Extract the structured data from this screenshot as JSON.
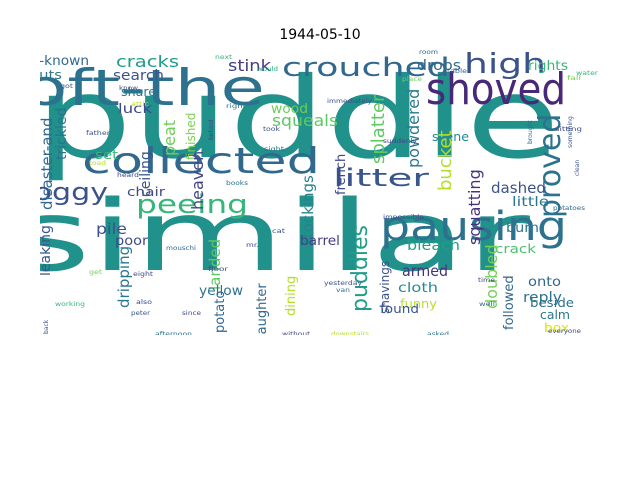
{
  "title": "1944-05-10",
  "words": [
    {
      "text": "puddle",
      "color": "#21918c"
    },
    {
      "text": "similar",
      "color": "#21918c"
    },
    {
      "text": "loft-the",
      "color": "#2c728e"
    },
    {
      "text": "shoved",
      "color": "#482878"
    },
    {
      "text": "collected",
      "color": "#31688e"
    },
    {
      "text": "pausing",
      "color": "#2c728e"
    },
    {
      "text": "crouched",
      "color": "#31688e"
    },
    {
      "text": "high",
      "color": "#3b528b"
    },
    {
      "text": "proved",
      "color": "#2c728e"
    },
    {
      "text": "litter",
      "color": "#39568c"
    },
    {
      "text": "soggy",
      "color": "#3b528b"
    },
    {
      "text": "peeing",
      "color": "#35b779"
    },
    {
      "text": "puddles",
      "color": "#1f9e89"
    },
    {
      "text": "cracks",
      "color": "#1f9e89"
    },
    {
      "text": "stink",
      "color": "#433e85"
    },
    {
      "text": "drops",
      "color": "#31688e"
    },
    {
      "text": "rights",
      "color": "#35b779"
    },
    {
      "text": "well-known",
      "color": "#31688e"
    },
    {
      "text": "shouts",
      "color": "#2a788e"
    },
    {
      "text": "search",
      "color": "#3b528b"
    },
    {
      "text": "share",
      "color": "#2a788e"
    },
    {
      "text": "luck",
      "color": "#3e4989"
    },
    {
      "text": "wood",
      "color": "#6ece58"
    },
    {
      "text": "squeals",
      "color": "#5ec962"
    },
    {
      "text": "peat",
      "color": "#6ece58"
    },
    {
      "text": "finished",
      "color": "#7ad151"
    },
    {
      "text": "heaven",
      "color": "#414487"
    },
    {
      "text": "stockings",
      "color": "#26828e"
    },
    {
      "text": "french",
      "color": "#3e4989"
    },
    {
      "text": "splatter",
      "color": "#5ec962"
    },
    {
      "text": "powdered",
      "color": "#2a788e"
    },
    {
      "text": "scene",
      "color": "#228c8d"
    },
    {
      "text": "bucket",
      "color": "#b5de2b"
    },
    {
      "text": "squatting",
      "color": "#46337e"
    },
    {
      "text": "dashed",
      "color": "#3b528b"
    },
    {
      "text": "little",
      "color": "#2a788e"
    },
    {
      "text": "burn",
      "color": "#2a788e"
    },
    {
      "text": "bleach",
      "color": "#1fa188"
    },
    {
      "text": "crack",
      "color": "#4ac16d"
    },
    {
      "text": "armed",
      "color": "#46337e"
    },
    {
      "text": "cloth",
      "color": "#228c8d"
    },
    {
      "text": "funny",
      "color": "#bddf26"
    },
    {
      "text": "doubled",
      "color": "#73d056"
    },
    {
      "text": "onto",
      "color": "#31688e"
    },
    {
      "text": "reply",
      "color": "#2c728e"
    },
    {
      "text": "calm",
      "color": "#2a788e"
    },
    {
      "text": "box",
      "color": "#d8e219"
    },
    {
      "text": "beside",
      "color": "#2c728e"
    },
    {
      "text": "followed",
      "color": "#31688e"
    },
    {
      "text": "found",
      "color": "#39568c"
    },
    {
      "text": "shavings",
      "color": "#3b528b"
    },
    {
      "text": "barrel",
      "color": "#433e85"
    },
    {
      "text": "dining",
      "color": "#b5de2b"
    },
    {
      "text": "laughter",
      "color": "#31688e"
    },
    {
      "text": "landed",
      "color": "#5ec962"
    },
    {
      "text": "yellow",
      "color": "#2c728e"
    },
    {
      "text": "potato",
      "color": "#31688e"
    },
    {
      "text": "chair",
      "color": "#3e4989"
    },
    {
      "text": "pile",
      "color": "#3b528b"
    },
    {
      "text": "poor",
      "color": "#3e4989"
    },
    {
      "text": "dripping",
      "color": "#2a788e"
    },
    {
      "text": "ceiling",
      "color": "#3b528b"
    },
    {
      "text": "set",
      "color": "#35b779"
    },
    {
      "text": "trickled",
      "color": "#2c728e"
    },
    {
      "text": "leaking",
      "color": "#39568c"
    },
    {
      "text": "disaster-and",
      "color": "#31688e"
    },
    {
      "text": "next",
      "color": "#35b779"
    },
    {
      "text": "would",
      "color": "#29af7f"
    },
    {
      "text": "room",
      "color": "#31688e"
    },
    {
      "text": "table",
      "color": "#31688e"
    },
    {
      "text": "place",
      "color": "#6ece58"
    },
    {
      "text": "fall",
      "color": "#7ad151"
    },
    {
      "text": "water",
      "color": "#35b779"
    },
    {
      "text": "got",
      "color": "#3b528b"
    },
    {
      "text": "know",
      "color": "#3e4989"
    },
    {
      "text": "attic",
      "color": "#bddf26"
    },
    {
      "text": "immediately",
      "color": "#3b528b"
    },
    {
      "text": "right",
      "color": "#2c728e"
    },
    {
      "text": "behind",
      "color": "#3e4989"
    },
    {
      "text": "took",
      "color": "#3b528b"
    },
    {
      "text": "sight",
      "color": "#2c728e"
    },
    {
      "text": "suddenly",
      "color": "#3e4989"
    },
    {
      "text": "brought",
      "color": "#31688e"
    },
    {
      "text": "sitting",
      "color": "#3e4989"
    },
    {
      "text": "something",
      "color": "#39568c"
    },
    {
      "text": "father",
      "color": "#3b528b"
    },
    {
      "text": "toad",
      "color": "#b5de2b"
    },
    {
      "text": "heard",
      "color": "#3e4989"
    },
    {
      "text": "books",
      "color": "#2c728e"
    },
    {
      "text": "clean",
      "color": "#3b528b"
    },
    {
      "text": "potatoes",
      "color": "#31688e"
    },
    {
      "text": "impossible",
      "color": "#3e4989"
    },
    {
      "text": "mouschi",
      "color": "#31688e"
    },
    {
      "text": "cat",
      "color": "#3b528b"
    },
    {
      "text": "mr.",
      "color": "#3e4989"
    },
    {
      "text": "floor",
      "color": "#3b528b"
    },
    {
      "text": "eight",
      "color": "#3e4989"
    },
    {
      "text": "get",
      "color": "#7ad151"
    },
    {
      "text": "yesterday",
      "color": "#3b528b"
    },
    {
      "text": "van",
      "color": "#2c728e"
    },
    {
      "text": "time",
      "color": "#3e4989"
    },
    {
      "text": "well",
      "color": "#31688e"
    },
    {
      "text": "working",
      "color": "#35b779"
    },
    {
      "text": "also",
      "color": "#3e4989"
    },
    {
      "text": "peter",
      "color": "#3b528b"
    },
    {
      "text": "since",
      "color": "#3e4989"
    },
    {
      "text": "back",
      "color": "#3b528b"
    },
    {
      "text": "afternoon",
      "color": "#2c728e"
    },
    {
      "text": "without",
      "color": "#3e4989"
    },
    {
      "text": "downstairs",
      "color": "#b5de2b"
    },
    {
      "text": "asked",
      "color": "#2c728e"
    },
    {
      "text": "everyone",
      "color": "#3e4989"
    }
  ]
}
